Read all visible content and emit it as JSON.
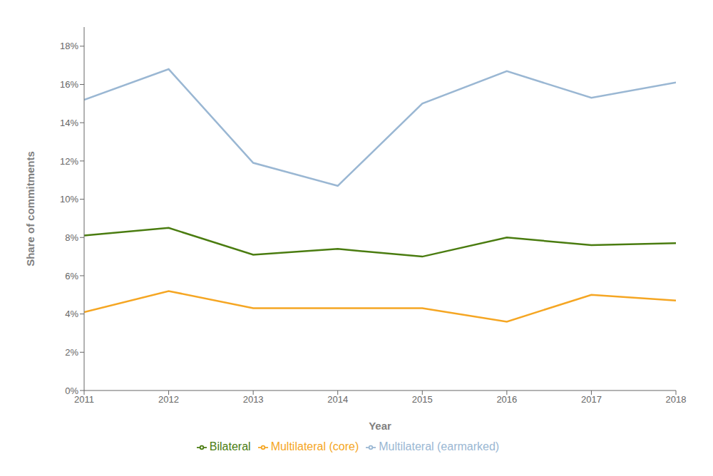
{
  "chart_data": {
    "type": "line",
    "x": [
      2011,
      2012,
      2013,
      2014,
      2015,
      2016,
      2017,
      2018
    ],
    "series": [
      {
        "name": "Bilateral",
        "color": "#4a7c10",
        "values": [
          0.081,
          0.085,
          0.071,
          0.074,
          0.07,
          0.08,
          0.076,
          0.077
        ]
      },
      {
        "name": "Multilateral (core)",
        "color": "#f5a623",
        "values": [
          0.041,
          0.052,
          0.043,
          0.043,
          0.043,
          0.036,
          0.05,
          0.047
        ]
      },
      {
        "name": "Multilateral (earmarked)",
        "color": "#9ab7d3",
        "values": [
          0.152,
          0.168,
          0.119,
          0.107,
          0.15,
          0.167,
          0.153,
          0.161
        ]
      }
    ],
    "x_label": "Year",
    "y_label": "Share of commitments",
    "xlim": [
      2011,
      2018
    ],
    "xticks": [
      2011,
      2012,
      2013,
      2014,
      2015,
      2016,
      2017,
      2018
    ],
    "ylim": [
      0,
      0.19
    ],
    "yticks": [
      {
        "value": 0,
        "label": "0%"
      },
      {
        "value": 0.02,
        "label": "2%"
      },
      {
        "value": 0.04,
        "label": "4%"
      },
      {
        "value": 0.06,
        "label": "6%"
      },
      {
        "value": 0.08,
        "label": "8%"
      },
      {
        "value": 0.1,
        "label": "10%"
      },
      {
        "value": 0.12,
        "label": "12%"
      },
      {
        "value": 0.14,
        "label": "14%"
      },
      {
        "value": 0.16,
        "label": "16%"
      },
      {
        "value": 0.18,
        "label": "18%"
      }
    ],
    "grid": false,
    "legend": "bottom"
  }
}
